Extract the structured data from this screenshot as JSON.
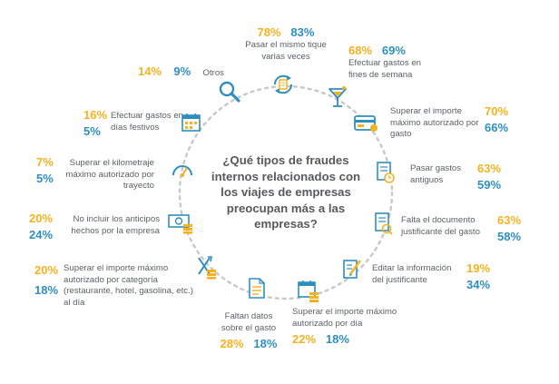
{
  "colors": {
    "yellow": "#f5b21f",
    "blue": "#2e8fbf",
    "text": "#58595b",
    "ring": "#c8c8c8"
  },
  "center_question": "¿Qué tipos de fraudes internos relacionados con los viajes de empresas preocupan más a las empresas?",
  "items": [
    {
      "id": "mismo-tique",
      "label": "Pasar el mismo tique varias veces",
      "yellow": "78%",
      "blue": "83%",
      "icon": "refresh-receipt-icon"
    },
    {
      "id": "fines-semana",
      "label": "Efectuar gastos en fines de semana",
      "yellow": "68%",
      "blue": "69%",
      "icon": "cocktail-icon"
    },
    {
      "id": "importe-gasto",
      "label": "Superar el importe máximo autorizado por gasto",
      "yellow": "70%",
      "blue": "66%",
      "icon": "credit-card-icon"
    },
    {
      "id": "gastos-antiguos",
      "label": "Pasar gastos antiguos",
      "yellow": "63%",
      "blue": "59%",
      "icon": "old-receipt-icon"
    },
    {
      "id": "falta-documento",
      "label": "Falta el documento justificante del gasto",
      "yellow": "63%",
      "blue": "58%",
      "icon": "missing-document-icon"
    },
    {
      "id": "editar-info",
      "label": "Editar la información del justificante",
      "yellow": "19%",
      "blue": "34%",
      "icon": "edit-document-icon"
    },
    {
      "id": "importe-dia",
      "label": "Superar el importe máximo autorizado por día",
      "yellow": "22%",
      "blue": "18%",
      "icon": "calendar-money-icon"
    },
    {
      "id": "faltan-datos",
      "label": "Faltan datos sobre el gasto",
      "yellow": "28%",
      "blue": "18%",
      "icon": "document-lines-icon"
    },
    {
      "id": "importe-categoria",
      "label": "Superar el importe máximo autorizado por categoría (restaurante, hotel, gasolina, etc.) al día",
      "yellow": "20%",
      "blue": "18%",
      "icon": "fork-knife-coins-icon"
    },
    {
      "id": "anticipos",
      "label": "No incluir los anticipos hechos por la empresa",
      "yellow": "20%",
      "blue": "24%",
      "icon": "banknote-icon"
    },
    {
      "id": "kilometraje",
      "label": "Superar el kilometraje máximo autorizado por trayecto",
      "yellow": "7%",
      "blue": "5%",
      "icon": "speedometer-icon"
    },
    {
      "id": "dias-festivos",
      "label": "Efectuar gastos en días festivos",
      "yellow": "16%",
      "blue": "5%",
      "icon": "calendar-icon"
    },
    {
      "id": "otros",
      "label": "Otros",
      "yellow": "14%",
      "blue": "9%",
      "icon": "magnifier-icon"
    }
  ]
}
